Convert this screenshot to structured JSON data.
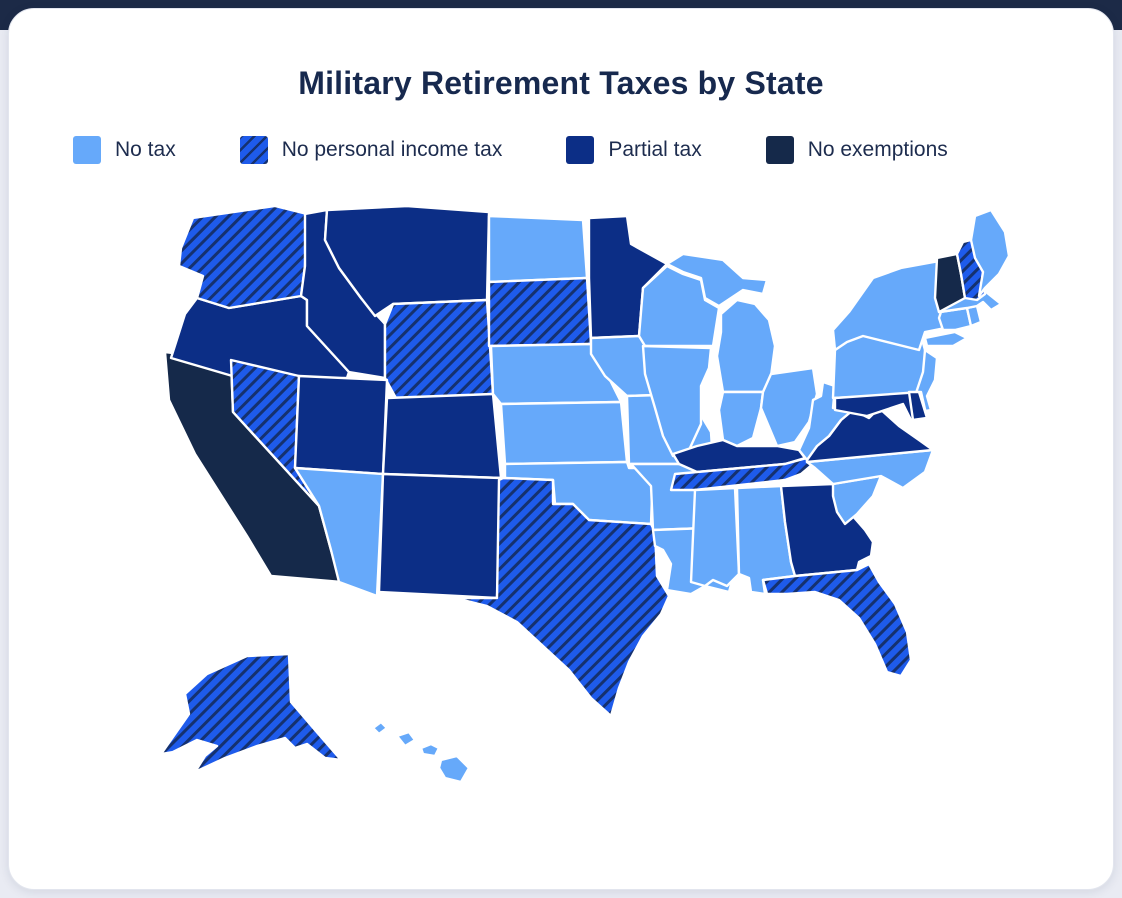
{
  "page": {
    "title": "Military Retirement Taxes by State"
  },
  "legend": {
    "items": [
      {
        "id": "no_tax",
        "label": "No tax",
        "color": "#66A9FA",
        "hatched": false
      },
      {
        "id": "no_income_tax",
        "label": "No personal income tax",
        "color": "#1E5BEB",
        "hatched": true,
        "stripe_color": "#15316F"
      },
      {
        "id": "partial_tax",
        "label": "Partial tax",
        "color": "#0C2E86",
        "hatched": false
      },
      {
        "id": "no_exemptions",
        "label": "No exemptions",
        "color": "#15294A",
        "hatched": false
      }
    ]
  },
  "map": {
    "border_color": "#FFFFFF",
    "states": [
      {
        "code": "CA",
        "name": "California",
        "category": "no_exemptions"
      },
      {
        "code": "OR",
        "name": "Oregon",
        "category": "partial_tax"
      },
      {
        "code": "WA",
        "name": "Washington",
        "category": "no_income_tax"
      },
      {
        "code": "NV",
        "name": "Nevada",
        "category": "no_income_tax"
      },
      {
        "code": "ID",
        "name": "Idaho",
        "category": "partial_tax"
      },
      {
        "code": "MT",
        "name": "Montana",
        "category": "partial_tax"
      },
      {
        "code": "WY",
        "name": "Wyoming",
        "category": "no_income_tax"
      },
      {
        "code": "UT",
        "name": "Utah",
        "category": "partial_tax"
      },
      {
        "code": "CO",
        "name": "Colorado",
        "category": "partial_tax"
      },
      {
        "code": "AZ",
        "name": "Arizona",
        "category": "no_tax"
      },
      {
        "code": "NM",
        "name": "New Mexico",
        "category": "partial_tax"
      },
      {
        "code": "ND",
        "name": "North Dakota",
        "category": "no_tax"
      },
      {
        "code": "SD",
        "name": "South Dakota",
        "category": "no_income_tax"
      },
      {
        "code": "NE",
        "name": "Nebraska",
        "category": "no_tax"
      },
      {
        "code": "KS",
        "name": "Kansas",
        "category": "no_tax"
      },
      {
        "code": "OK",
        "name": "Oklahoma",
        "category": "no_tax"
      },
      {
        "code": "TX",
        "name": "Texas",
        "category": "no_income_tax"
      },
      {
        "code": "MN",
        "name": "Minnesota",
        "category": "partial_tax"
      },
      {
        "code": "IA",
        "name": "Iowa",
        "category": "no_tax"
      },
      {
        "code": "MO",
        "name": "Missouri",
        "category": "no_tax"
      },
      {
        "code": "AR",
        "name": "Arkansas",
        "category": "no_tax"
      },
      {
        "code": "LA",
        "name": "Louisiana",
        "category": "no_tax"
      },
      {
        "code": "WI",
        "name": "Wisconsin",
        "category": "no_tax"
      },
      {
        "code": "IL",
        "name": "Illinois",
        "category": "no_tax"
      },
      {
        "code": "MI",
        "name": "Michigan",
        "category": "no_tax"
      },
      {
        "code": "IN",
        "name": "Indiana",
        "category": "no_tax"
      },
      {
        "code": "OH",
        "name": "Ohio",
        "category": "no_tax"
      },
      {
        "code": "KY",
        "name": "Kentucky",
        "category": "partial_tax"
      },
      {
        "code": "TN",
        "name": "Tennessee",
        "category": "no_income_tax"
      },
      {
        "code": "MS",
        "name": "Mississippi",
        "category": "no_tax"
      },
      {
        "code": "AL",
        "name": "Alabama",
        "category": "no_tax"
      },
      {
        "code": "GA",
        "name": "Georgia",
        "category": "partial_tax"
      },
      {
        "code": "FL",
        "name": "Florida",
        "category": "no_income_tax"
      },
      {
        "code": "SC",
        "name": "South Carolina",
        "category": "no_tax"
      },
      {
        "code": "NC",
        "name": "North Carolina",
        "category": "no_tax"
      },
      {
        "code": "VA",
        "name": "Virginia",
        "category": "partial_tax"
      },
      {
        "code": "WV",
        "name": "West Virginia",
        "category": "no_tax"
      },
      {
        "code": "PA",
        "name": "Pennsylvania",
        "category": "no_tax"
      },
      {
        "code": "NY",
        "name": "New York",
        "category": "no_tax"
      },
      {
        "code": "NJ",
        "name": "New Jersey",
        "category": "no_tax"
      },
      {
        "code": "MD",
        "name": "Maryland",
        "category": "partial_tax"
      },
      {
        "code": "DE",
        "name": "Delaware",
        "category": "partial_tax"
      },
      {
        "code": "CT",
        "name": "Connecticut",
        "category": "no_tax"
      },
      {
        "code": "RI",
        "name": "Rhode Island",
        "category": "no_tax"
      },
      {
        "code": "MA",
        "name": "Massachusetts",
        "category": "no_tax"
      },
      {
        "code": "VT",
        "name": "Vermont",
        "category": "no_exemptions"
      },
      {
        "code": "NH",
        "name": "New Hampshire",
        "category": "no_income_tax"
      },
      {
        "code": "ME",
        "name": "Maine",
        "category": "no_tax"
      },
      {
        "code": "AK",
        "name": "Alaska",
        "category": "no_income_tax"
      },
      {
        "code": "HI",
        "name": "Hawaii",
        "category": "no_tax"
      }
    ]
  },
  "theme": {
    "page_bg": "#E9EBF3",
    "top_strip": "#1C2A47",
    "card_bg": "#FFFFFF",
    "title_color": "#17294E",
    "label_color": "#1D2C4E"
  }
}
